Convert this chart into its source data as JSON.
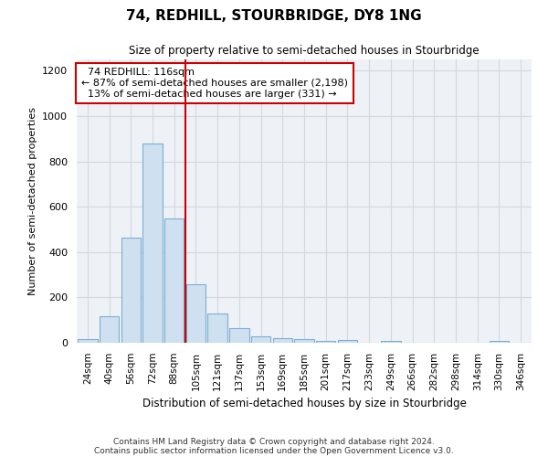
{
  "title": "74, REDHILL, STOURBRIDGE, DY8 1NG",
  "subtitle": "Size of property relative to semi-detached houses in Stourbridge",
  "xlabel": "Distribution of semi-detached houses by size in Stourbridge",
  "ylabel": "Number of semi-detached properties",
  "footer1": "Contains HM Land Registry data © Crown copyright and database right 2024.",
  "footer2": "Contains public sector information licensed under the Open Government Licence v3.0.",
  "bar_color": "#cfe0f0",
  "bar_edge_color": "#7aafd4",
  "annotation_box_edge": "#cc0000",
  "vline_color": "#cc0000",
  "grid_color": "#d0d8e0",
  "bg_color": "#eef2f7",
  "categories": [
    "24sqm",
    "40sqm",
    "56sqm",
    "72sqm",
    "88sqm",
    "105sqm",
    "121sqm",
    "137sqm",
    "153sqm",
    "169sqm",
    "185sqm",
    "201sqm",
    "217sqm",
    "233sqm",
    "249sqm",
    "266sqm",
    "282sqm",
    "298sqm",
    "314sqm",
    "330sqm",
    "346sqm"
  ],
  "values": [
    18,
    115,
    465,
    878,
    548,
    260,
    130,
    65,
    30,
    22,
    16,
    7,
    12,
    0,
    8,
    0,
    0,
    0,
    0,
    10,
    0
  ],
  "ylim": [
    0,
    1250
  ],
  "yticks": [
    0,
    200,
    400,
    600,
    800,
    1000,
    1200
  ],
  "property_label": "74 REDHILL: 116sqm",
  "pct_smaller": 87,
  "n_smaller": 2198,
  "pct_larger": 13,
  "n_larger": 331,
  "vline_bar_index": 5
}
